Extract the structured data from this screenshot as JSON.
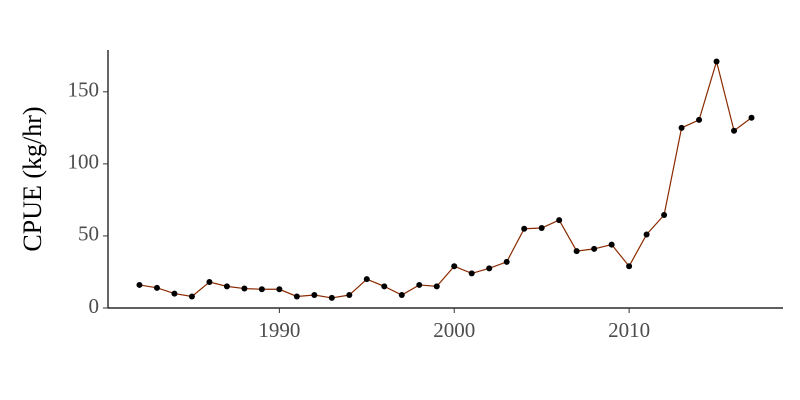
{
  "chart_data": {
    "type": "line",
    "y_label": "CPUE (kg/hr)",
    "x": [
      1982,
      1983,
      1984,
      1985,
      1986,
      1987,
      1988,
      1989,
      1990,
      1991,
      1992,
      1993,
      1994,
      1995,
      1996,
      1997,
      1998,
      1999,
      2000,
      2001,
      2002,
      2003,
      2004,
      2005,
      2006,
      2007,
      2008,
      2009,
      2010,
      2011,
      2012,
      2013,
      2014,
      2015,
      2016,
      2017
    ],
    "values": [
      16,
      14,
      10,
      8,
      18,
      15,
      13.5,
      13,
      13,
      8,
      9,
      7,
      9,
      20,
      15,
      9,
      16,
      15,
      29,
      24,
      27.5,
      32,
      55,
      55.5,
      61,
      39.5,
      41,
      44,
      29,
      51,
      64.5,
      125,
      130.5,
      171,
      123,
      132
    ],
    "color": "#8b2a00",
    "marker_color": "#000000",
    "xlim": [
      1980.2,
      2018.8
    ],
    "xticks": [
      1990,
      2000,
      2010
    ],
    "ylim": [
      0,
      179
    ],
    "yticks": [
      0,
      50,
      100,
      150
    ],
    "grid": false
  }
}
